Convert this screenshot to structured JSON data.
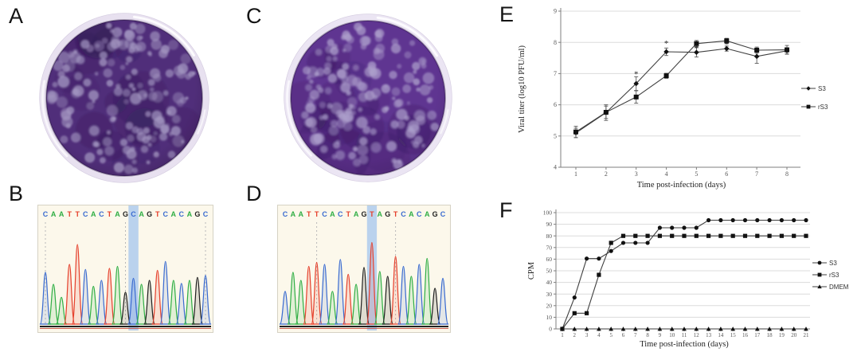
{
  "labels": {
    "a": "A",
    "b": "B",
    "c": "C",
    "d": "D",
    "e": "E",
    "f": "F"
  },
  "base_colors": {
    "A": "#2fae44",
    "C": "#3a6bd0",
    "G": "#1f1f1f",
    "T": "#e5402c"
  },
  "chromatograms": {
    "b": {
      "sequence": "CAATTCACTAGCAGTCACAGC",
      "highlight_index": 11,
      "highlight_color": "#a9c8ee",
      "dashed_line_indices": [
        0,
        10,
        20
      ],
      "peak_heights": [
        0.52,
        0.4,
        0.27,
        0.6,
        0.8,
        0.55,
        0.38,
        0.44,
        0.56,
        0.58,
        0.32,
        0.46,
        0.4,
        0.44,
        0.54,
        0.63,
        0.44,
        0.41,
        0.44,
        0.47,
        0.49
      ],
      "background_color": "#fcf8eb"
    },
    "d": {
      "sequence": "CAATTCACTAGTAGTCACAGC",
      "highlight_index": 11,
      "highlight_color": "#a9c8ee",
      "dashed_line_indices": [
        4,
        14
      ],
      "peak_heights": [
        0.33,
        0.52,
        0.44,
        0.58,
        0.62,
        0.6,
        0.33,
        0.65,
        0.5,
        0.4,
        0.57,
        0.82,
        0.53,
        0.48,
        0.68,
        0.58,
        0.48,
        0.6,
        0.66,
        0.36,
        0.46
      ],
      "background_color": "#fcf8eb"
    }
  },
  "dishes": {
    "a": {
      "body_color": "#502e7a",
      "body_edge_color": "#42255f",
      "plaque_color": "#a295c0",
      "rim_color": "#e8e1f0"
    },
    "c": {
      "body_color": "#5f3591",
      "body_edge_color": "#4f2b78",
      "plaque_color": "#ac9ecb",
      "rim_color": "#ebe5f3"
    }
  },
  "chart_data": [
    {
      "type": "line",
      "panel": "E",
      "title": "",
      "xlabel": "Time post-infection (days)",
      "ylabel": "Viral titer (log10 PFU/ml)",
      "x": [
        1,
        2,
        3,
        4,
        5,
        6,
        7,
        8
      ],
      "ylim": [
        4,
        9
      ],
      "yticks": [
        4,
        5,
        6,
        7,
        8,
        9
      ],
      "grid": true,
      "legend_position": "right",
      "series": [
        {
          "name": "S3",
          "marker": "diamond",
          "values": [
            5.1,
            5.75,
            6.68,
            7.7,
            7.68,
            7.8,
            7.55,
            7.73
          ],
          "errors": [
            0.15,
            0.25,
            0.22,
            0.12,
            0.15,
            0.08,
            0.22,
            0.1
          ]
        },
        {
          "name": "rS3",
          "marker": "square",
          "values": [
            5.13,
            5.76,
            6.25,
            6.93,
            7.96,
            8.05,
            7.75,
            7.76
          ],
          "errors": [
            0.18,
            0.2,
            0.2,
            0.08,
            0.1,
            0.08,
            0.1,
            0.14
          ]
        }
      ],
      "annotations": [
        {
          "x": 3,
          "y": 6.97,
          "text": "*"
        },
        {
          "x": 4,
          "y": 7.95,
          "text": "*"
        },
        {
          "x": 5,
          "y": 7.8,
          "text": "*"
        },
        {
          "x": 6,
          "y": 7.92,
          "text": "*"
        }
      ]
    },
    {
      "type": "line",
      "panel": "F",
      "title": "",
      "xlabel": "Time post-infection (days)",
      "ylabel": "CPM",
      "x": [
        1,
        2,
        3,
        4,
        5,
        6,
        7,
        8,
        9,
        10,
        11,
        12,
        13,
        14,
        15,
        16,
        17,
        18,
        19,
        20,
        21
      ],
      "ylim": [
        0,
        100
      ],
      "yticks": [
        0,
        10,
        20,
        30,
        40,
        50,
        60,
        70,
        80,
        90,
        100
      ],
      "grid": true,
      "legend_position": "right",
      "series": [
        {
          "name": "S3",
          "marker": "circle",
          "values": [
            0,
            27,
            60.5,
            60.5,
            67,
            74,
            74,
            74,
            87,
            87,
            87,
            87,
            93.5,
            93.5,
            93.5,
            93.5,
            93.5,
            93.5,
            93.5,
            93.5,
            93.5
          ]
        },
        {
          "name": "rS3",
          "marker": "square",
          "values": [
            0,
            13.5,
            13.5,
            46.5,
            74,
            80,
            80,
            80,
            80,
            80,
            80,
            80,
            80,
            80,
            80,
            80,
            80,
            80,
            80,
            80,
            80
          ]
        },
        {
          "name": "DMEM",
          "marker": "triangle",
          "values": [
            0,
            0,
            0,
            0,
            0,
            0,
            0,
            0,
            0,
            0,
            0,
            0,
            0,
            0,
            0,
            0,
            0,
            0,
            0,
            0,
            0
          ]
        }
      ],
      "annotations": []
    }
  ]
}
